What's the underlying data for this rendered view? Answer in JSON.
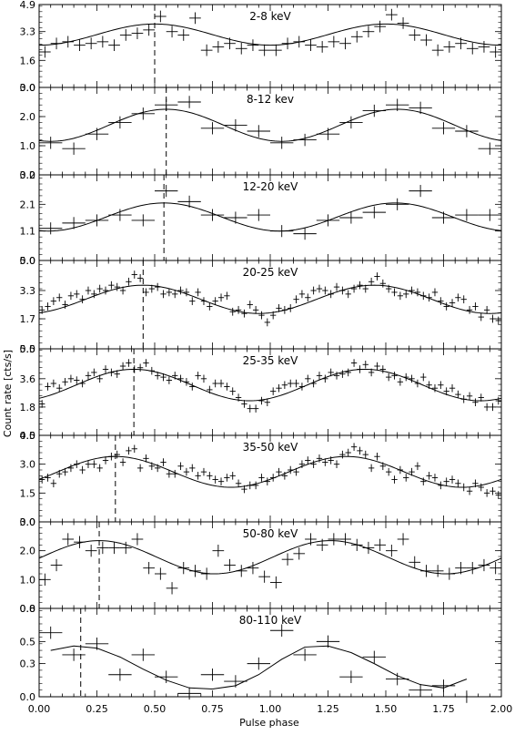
{
  "figure": {
    "xlabel": "Pulse phase",
    "ylabel": "Count rate [cts/s]",
    "xlim": [
      0.0,
      2.0
    ],
    "xticks": [
      "0.00",
      "0.25",
      "0.50",
      "0.75",
      "1.00",
      "1.25",
      "1.50",
      "1.75",
      "2.00"
    ],
    "colors": {
      "ink": "#000000",
      "background": "#ffffff"
    }
  },
  "chart_data": [
    {
      "type": "scatter",
      "panel_label": "2-8 keV",
      "ylim": [
        0.0,
        4.9
      ],
      "yticks": [
        "0.0",
        "1.6",
        "3.3",
        "4.9"
      ],
      "marker_phase": 0.5,
      "series": [
        {
          "kind": "data",
          "x": [
            0.025,
            0.075,
            0.125,
            0.175,
            0.225,
            0.275,
            0.325,
            0.375,
            0.425,
            0.475,
            0.525,
            0.575,
            0.625,
            0.675,
            0.725,
            0.775,
            0.825,
            0.875,
            0.925,
            0.975,
            1.025,
            1.075,
            1.125,
            1.175,
            1.225,
            1.275,
            1.325,
            1.375,
            1.425,
            1.475,
            1.525,
            1.575,
            1.625,
            1.675,
            1.725,
            1.775,
            1.825,
            1.875,
            1.925,
            1.975
          ],
          "y": [
            2.1,
            2.6,
            2.7,
            2.5,
            2.6,
            2.7,
            2.5,
            3.1,
            3.2,
            3.4,
            4.2,
            3.3,
            3.1,
            4.1,
            2.2,
            2.4,
            2.6,
            2.3,
            2.5,
            2.2,
            2.2,
            2.6,
            2.7,
            2.5,
            2.4,
            2.7,
            2.6,
            3.0,
            3.3,
            3.6,
            4.3,
            3.8,
            3.1,
            2.8,
            2.2,
            2.4,
            2.6,
            2.3,
            2.4,
            2.1
          ]
        },
        {
          "kind": "model",
          "phase_peak": 0.5,
          "baseline": 2.5,
          "amplitude": 1.25
        }
      ]
    },
    {
      "type": "scatter",
      "panel_label": "8-12 kev",
      "ylim": [
        0.0,
        3.0
      ],
      "yticks": [
        "0.0",
        "1.0",
        "2.0",
        "3.0"
      ],
      "marker_phase": 0.55,
      "series": [
        {
          "kind": "data",
          "x": [
            0.05,
            0.15,
            0.25,
            0.35,
            0.45,
            0.55,
            0.65,
            0.75,
            0.85,
            0.95,
            1.05,
            1.15,
            1.25,
            1.35,
            1.45,
            1.55,
            1.65,
            1.75,
            1.85,
            1.95
          ],
          "y": [
            1.1,
            0.9,
            1.4,
            1.8,
            2.1,
            2.4,
            2.5,
            1.6,
            1.7,
            1.5,
            1.1,
            1.2,
            1.4,
            1.8,
            2.2,
            2.4,
            2.3,
            1.6,
            1.5,
            0.9
          ]
        },
        {
          "kind": "model",
          "phase_peak": 0.55,
          "baseline": 1.15,
          "amplitude": 1.1
        }
      ]
    },
    {
      "type": "scatter",
      "panel_label": "12-20 keV",
      "ylim": [
        0.0,
        3.2
      ],
      "yticks": [
        "0.0",
        "1.1",
        "2.1",
        "3.2"
      ],
      "marker_phase": 0.54,
      "series": [
        {
          "kind": "data",
          "x": [
            0.05,
            0.15,
            0.25,
            0.35,
            0.45,
            0.55,
            0.65,
            0.75,
            0.85,
            0.95,
            1.05,
            1.15,
            1.25,
            1.35,
            1.45,
            1.55,
            1.65,
            1.75,
            1.85,
            1.95
          ],
          "y": [
            1.2,
            1.4,
            1.5,
            1.7,
            1.5,
            2.6,
            2.2,
            1.7,
            1.6,
            1.7,
            1.1,
            1.0,
            1.5,
            1.6,
            1.8,
            2.1,
            2.6,
            1.6,
            1.7,
            1.7
          ]
        },
        {
          "kind": "model",
          "phase_peak": 0.54,
          "baseline": 1.1,
          "amplitude": 1.05
        }
      ]
    },
    {
      "type": "scatter",
      "panel_label": "20-25 keV",
      "ylim": [
        0.0,
        5.0
      ],
      "yticks": [
        "0.0",
        "1.7",
        "3.3",
        "5.0"
      ],
      "marker_phase": 0.45,
      "series": [
        {
          "kind": "data",
          "x": [
            0.0125,
            0.0375,
            0.0625,
            0.0875,
            0.1125,
            0.1375,
            0.1625,
            0.1875,
            0.2125,
            0.2375,
            0.2625,
            0.2875,
            0.3125,
            0.3375,
            0.3625,
            0.3875,
            0.4125,
            0.4375,
            0.4625,
            0.4875,
            0.5125,
            0.5375,
            0.5625,
            0.5875,
            0.6125,
            0.6375,
            0.6625,
            0.6875,
            0.7125,
            0.7375,
            0.7625,
            0.7875,
            0.8125,
            0.8375,
            0.8625,
            0.8875,
            0.9125,
            0.9375,
            0.9625,
            0.9875,
            1.0125,
            1.0375,
            1.0625,
            1.0875,
            1.1125,
            1.1375,
            1.1625,
            1.1875,
            1.2125,
            1.2375,
            1.2625,
            1.2875,
            1.3125,
            1.3375,
            1.3625,
            1.3875,
            1.4125,
            1.4375,
            1.4625,
            1.4875,
            1.5125,
            1.5375,
            1.5625,
            1.5875,
            1.6125,
            1.6375,
            1.6625,
            1.6875,
            1.7125,
            1.7375,
            1.7625,
            1.7875,
            1.8125,
            1.8375,
            1.8625,
            1.8875,
            1.9125,
            1.9375,
            1.9625,
            1.9875
          ],
          "y": [
            2.2,
            2.4,
            2.7,
            2.9,
            2.5,
            3.0,
            3.1,
            2.8,
            3.3,
            3.1,
            3.4,
            3.3,
            3.6,
            3.5,
            3.3,
            3.8,
            4.2,
            4.0,
            3.2,
            3.4,
            3.5,
            3.1,
            3.2,
            3.1,
            3.3,
            3.2,
            2.7,
            3.2,
            2.7,
            2.4,
            2.7,
            2.9,
            3.0,
            2.1,
            2.2,
            2.0,
            2.5,
            2.2,
            1.9,
            1.5,
            1.9,
            2.3,
            2.2,
            2.3,
            2.8,
            3.1,
            2.9,
            3.3,
            3.4,
            3.3,
            3.1,
            3.5,
            3.3,
            3.1,
            3.4,
            3.6,
            3.4,
            3.8,
            4.1,
            3.7,
            3.4,
            3.2,
            3.0,
            3.1,
            3.3,
            3.2,
            3.0,
            2.9,
            3.2,
            2.7,
            2.4,
            2.6,
            2.9,
            2.8,
            2.2,
            2.4,
            1.8,
            2.2,
            1.7,
            1.6
          ]
        },
        {
          "kind": "model",
          "phase_peak": 0.45,
          "baseline": 2.0,
          "amplitude": 1.6
        }
      ]
    },
    {
      "type": "scatter",
      "panel_label": "25-35 keV",
      "ylim": [
        0.0,
        5.5
      ],
      "yticks": [
        "0.0",
        "1.8",
        "3.6",
        "5.5"
      ],
      "marker_phase": 0.41,
      "series": [
        {
          "kind": "data",
          "x": [
            0.0125,
            0.0375,
            0.0625,
            0.0875,
            0.1125,
            0.1375,
            0.1625,
            0.1875,
            0.2125,
            0.2375,
            0.2625,
            0.2875,
            0.3125,
            0.3375,
            0.3625,
            0.3875,
            0.4125,
            0.4375,
            0.4625,
            0.4875,
            0.5125,
            0.5375,
            0.5625,
            0.5875,
            0.6125,
            0.6375,
            0.6625,
            0.6875,
            0.7125,
            0.7375,
            0.7625,
            0.7875,
            0.8125,
            0.8375,
            0.8625,
            0.8875,
            0.9125,
            0.9375,
            0.9625,
            0.9875,
            1.0125,
            1.0375,
            1.0625,
            1.0875,
            1.1125,
            1.1375,
            1.1625,
            1.1875,
            1.2125,
            1.2375,
            1.2625,
            1.2875,
            1.3125,
            1.3375,
            1.3625,
            1.3875,
            1.4125,
            1.4375,
            1.4625,
            1.4875,
            1.5125,
            1.5375,
            1.5625,
            1.5875,
            1.6125,
            1.6375,
            1.6625,
            1.6875,
            1.7125,
            1.7375,
            1.7625,
            1.7875,
            1.8125,
            1.8375,
            1.8625,
            1.8875,
            1.9125,
            1.9375,
            1.9625,
            1.9875
          ],
          "y": [
            2.0,
            3.1,
            3.3,
            3.0,
            3.4,
            3.6,
            3.5,
            3.3,
            3.8,
            4.0,
            3.6,
            4.2,
            4.0,
            3.9,
            4.4,
            4.6,
            4.2,
            4.3,
            4.6,
            4.1,
            3.8,
            3.7,
            3.5,
            3.8,
            3.6,
            3.4,
            3.1,
            3.8,
            3.6,
            2.9,
            3.3,
            3.3,
            3.1,
            2.8,
            2.4,
            2.0,
            1.7,
            1.7,
            2.2,
            2.1,
            2.8,
            3.0,
            3.2,
            3.3,
            3.3,
            3.1,
            3.6,
            3.3,
            3.8,
            3.6,
            4.0,
            3.8,
            3.9,
            4.0,
            4.6,
            4.2,
            4.5,
            4.0,
            4.4,
            4.2,
            3.7,
            3.8,
            3.4,
            3.7,
            3.6,
            3.3,
            3.7,
            3.2,
            3.0,
            3.2,
            2.8,
            3.0,
            2.6,
            2.3,
            2.5,
            2.1,
            2.4,
            1.8,
            1.8,
            2.2
          ]
        },
        {
          "kind": "model",
          "phase_peak": 0.41,
          "baseline": 2.2,
          "amplitude": 2.0
        }
      ]
    },
    {
      "type": "scatter",
      "panel_label": "35-50 keV",
      "ylim": [
        0.0,
        4.5
      ],
      "yticks": [
        "0.0",
        "1.5",
        "3.0",
        "4.5"
      ],
      "marker_phase": 0.33,
      "series": [
        {
          "kind": "data",
          "x": [
            0.0125,
            0.0375,
            0.0625,
            0.0875,
            0.1125,
            0.1375,
            0.1625,
            0.1875,
            0.2125,
            0.2375,
            0.2625,
            0.2875,
            0.3125,
            0.3375,
            0.3625,
            0.3875,
            0.4125,
            0.4375,
            0.4625,
            0.4875,
            0.5125,
            0.5375,
            0.5625,
            0.5875,
            0.6125,
            0.6375,
            0.6625,
            0.6875,
            0.7125,
            0.7375,
            0.7625,
            0.7875,
            0.8125,
            0.8375,
            0.8625,
            0.8875,
            0.9125,
            0.9375,
            0.9625,
            0.9875,
            1.0125,
            1.0375,
            1.0625,
            1.0875,
            1.1125,
            1.1375,
            1.1625,
            1.1875,
            1.2125,
            1.2375,
            1.2625,
            1.2875,
            1.3125,
            1.3375,
            1.3625,
            1.3875,
            1.4125,
            1.4375,
            1.4625,
            1.4875,
            1.5125,
            1.5375,
            1.5625,
            1.5875,
            1.6125,
            1.6375,
            1.6625,
            1.6875,
            1.7125,
            1.7375,
            1.7625,
            1.7875,
            1.8125,
            1.8375,
            1.8625,
            1.8875,
            1.9125,
            1.9375,
            1.9625,
            1.9875
          ],
          "y": [
            2.2,
            2.3,
            2.0,
            2.5,
            2.6,
            2.8,
            3.0,
            2.7,
            3.0,
            3.0,
            2.8,
            3.2,
            3.4,
            3.5,
            3.1,
            3.7,
            3.8,
            2.8,
            3.3,
            2.9,
            2.8,
            3.1,
            2.5,
            2.5,
            2.9,
            2.6,
            2.8,
            2.4,
            2.6,
            2.4,
            2.2,
            2.1,
            2.3,
            2.4,
            2.0,
            1.7,
            1.9,
            1.9,
            2.3,
            2.1,
            2.3,
            2.6,
            2.4,
            2.7,
            2.6,
            3.0,
            3.2,
            3.0,
            3.3,
            3.1,
            3.2,
            3.0,
            3.5,
            3.6,
            3.9,
            3.7,
            3.5,
            2.8,
            3.4,
            2.9,
            2.6,
            2.2,
            2.7,
            2.3,
            2.6,
            2.9,
            2.1,
            2.4,
            2.3,
            1.9,
            2.1,
            2.2,
            2.0,
            1.8,
            1.6,
            2.0,
            1.8,
            1.5,
            1.6,
            1.4
          ]
        },
        {
          "kind": "model",
          "phase_peak": 0.33,
          "baseline": 1.8,
          "amplitude": 1.6
        }
      ]
    },
    {
      "type": "scatter",
      "panel_label": "50-80 keV",
      "ylim": [
        0.0,
        3.0
      ],
      "yticks": [
        "0.0",
        "1.0",
        "2.0",
        "3.0"
      ],
      "marker_phase": 0.26,
      "series": [
        {
          "kind": "data",
          "x": [
            0.025,
            0.075,
            0.125,
            0.175,
            0.225,
            0.275,
            0.325,
            0.375,
            0.425,
            0.475,
            0.525,
            0.575,
            0.625,
            0.675,
            0.725,
            0.775,
            0.825,
            0.875,
            0.925,
            0.975,
            1.025,
            1.075,
            1.125,
            1.175,
            1.225,
            1.275,
            1.325,
            1.375,
            1.425,
            1.475,
            1.525,
            1.575,
            1.625,
            1.675,
            1.725,
            1.775,
            1.825,
            1.875,
            1.925,
            1.975
          ],
          "y": [
            1.0,
            1.5,
            2.4,
            2.3,
            2.0,
            2.1,
            2.1,
            2.1,
            2.4,
            1.4,
            1.2,
            0.7,
            1.4,
            1.3,
            1.2,
            2.0,
            1.5,
            1.3,
            1.4,
            1.1,
            0.9,
            1.7,
            1.9,
            2.4,
            2.2,
            2.4,
            2.4,
            2.2,
            2.1,
            2.2,
            2.0,
            2.4,
            1.6,
            1.3,
            1.3,
            1.2,
            1.4,
            1.4,
            1.5,
            1.4
          ]
        },
        {
          "kind": "model",
          "phase_peak": 0.26,
          "baseline": 1.2,
          "amplitude": 1.15
        }
      ]
    },
    {
      "type": "scatter",
      "panel_label": "80-110 keV",
      "ylim": [
        0.0,
        0.8
      ],
      "yticks": [
        "0.0",
        "0.3",
        "0.5",
        "0.8"
      ],
      "marker_phase": 0.18,
      "series": [
        {
          "kind": "data",
          "x": [
            0.05,
            0.15,
            0.25,
            0.35,
            0.45,
            0.55,
            0.65,
            0.75,
            0.85,
            0.95,
            1.05,
            1.15,
            1.25,
            1.35,
            1.45,
            1.55,
            1.65,
            1.75,
            1.85
          ],
          "y": [
            0.58,
            0.38,
            0.48,
            0.2,
            0.38,
            0.18,
            0.03,
            0.2,
            0.14,
            0.3,
            0.6,
            0.38,
            0.5,
            0.18,
            0.36,
            0.16,
            0.06,
            0.1,
            0.0
          ]
        },
        {
          "kind": "model",
          "x": [
            0.05,
            0.15,
            0.25,
            0.35,
            0.45,
            0.55,
            0.65,
            0.75,
            0.85,
            0.95,
            1.05,
            1.15,
            1.25,
            1.35,
            1.45,
            1.55,
            1.65,
            1.75,
            1.85
          ],
          "y": [
            0.42,
            0.46,
            0.44,
            0.36,
            0.25,
            0.15,
            0.08,
            0.07,
            0.1,
            0.2,
            0.34,
            0.45,
            0.46,
            0.4,
            0.3,
            0.19,
            0.11,
            0.08,
            0.16
          ]
        }
      ]
    }
  ]
}
